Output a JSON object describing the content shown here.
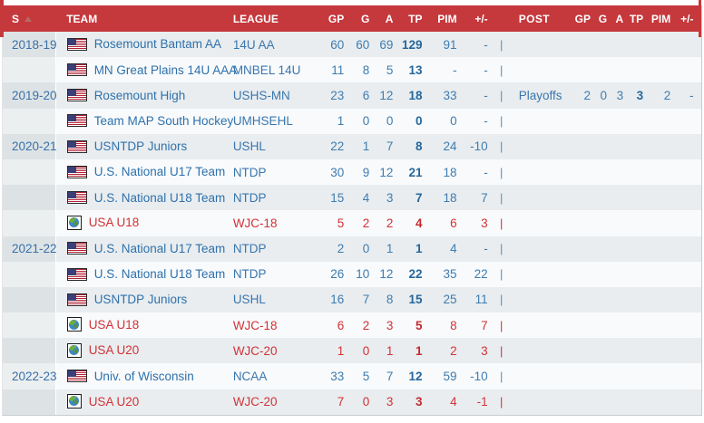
{
  "table": {
    "separator": "|",
    "header": {
      "season": "S",
      "team": "TEAM",
      "league": "LEAGUE",
      "gp": "GP",
      "g": "G",
      "a": "A",
      "tp": "TP",
      "pim": "PIM",
      "plus_minus": "+/-",
      "post": "POST",
      "post_gp": "GP",
      "post_g": "G",
      "post_a": "A",
      "post_tp": "TP",
      "post_pim": "PIM",
      "post_plus_minus": "+/-"
    },
    "rows": [
      {
        "season": "2018-19",
        "team": "Rosemount Bantam AA",
        "league": "14U AA",
        "icon": "us-flag",
        "intl": false,
        "gp": "60",
        "g": "60",
        "a": "69",
        "tp": "129",
        "pim": "91",
        "pm": "-",
        "post": null
      },
      {
        "season": "",
        "team": "MN Great Plains 14U AAA",
        "league": "MNBEL 14U",
        "icon": "us-flag",
        "intl": false,
        "gp": "11",
        "g": "8",
        "a": "5",
        "tp": "13",
        "pim": "-",
        "pm": "-",
        "post": null
      },
      {
        "season": "2019-20",
        "team": "Rosemount High",
        "league": "USHS-MN",
        "icon": "us-flag",
        "intl": false,
        "gp": "23",
        "g": "6",
        "a": "12",
        "tp": "18",
        "pim": "33",
        "pm": "-",
        "post": {
          "label": "Playoffs",
          "gp": "2",
          "g": "0",
          "a": "3",
          "tp": "3",
          "pim": "2",
          "pm": "-"
        }
      },
      {
        "season": "",
        "team": "Team MAP South Hockey",
        "league": "UMHSEHL",
        "icon": "us-flag",
        "intl": false,
        "gp": "1",
        "g": "0",
        "a": "0",
        "tp": "0",
        "pim": "0",
        "pm": "-",
        "post": null
      },
      {
        "season": "2020-21",
        "team": "USNTDP Juniors",
        "league": "USHL",
        "icon": "us-flag",
        "intl": false,
        "gp": "22",
        "g": "1",
        "a": "7",
        "tp": "8",
        "pim": "24",
        "pm": "-10",
        "post": null
      },
      {
        "season": "",
        "team": "U.S. National U17 Team",
        "league": "NTDP",
        "icon": "us-flag",
        "intl": false,
        "gp": "30",
        "g": "9",
        "a": "12",
        "tp": "21",
        "pim": "18",
        "pm": "-",
        "post": null
      },
      {
        "season": "",
        "team": "U.S. National U18 Team",
        "league": "NTDP",
        "icon": "us-flag",
        "intl": false,
        "gp": "15",
        "g": "4",
        "a": "3",
        "tp": "7",
        "pim": "18",
        "pm": "7",
        "post": null
      },
      {
        "season": "",
        "team": "USA U18",
        "league": "WJC-18",
        "icon": "globe",
        "intl": true,
        "gp": "5",
        "g": "2",
        "a": "2",
        "tp": "4",
        "pim": "6",
        "pm": "3",
        "post": null
      },
      {
        "season": "2021-22",
        "team": "U.S. National U17 Team",
        "league": "NTDP",
        "icon": "us-flag",
        "intl": false,
        "gp": "2",
        "g": "0",
        "a": "1",
        "tp": "1",
        "pim": "4",
        "pm": "-",
        "post": null
      },
      {
        "season": "",
        "team": "U.S. National U18 Team",
        "league": "NTDP",
        "icon": "us-flag",
        "intl": false,
        "gp": "26",
        "g": "10",
        "a": "12",
        "tp": "22",
        "pim": "35",
        "pm": "22",
        "post": null
      },
      {
        "season": "",
        "team": "USNTDP Juniors",
        "league": "USHL",
        "icon": "us-flag",
        "intl": false,
        "gp": "16",
        "g": "7",
        "a": "8",
        "tp": "15",
        "pim": "25",
        "pm": "11",
        "post": null
      },
      {
        "season": "",
        "team": "USA U18",
        "league": "WJC-18",
        "icon": "globe",
        "intl": true,
        "gp": "6",
        "g": "2",
        "a": "3",
        "tp": "5",
        "pim": "8",
        "pm": "7",
        "post": null
      },
      {
        "season": "",
        "team": "USA U20",
        "league": "WJC-20",
        "icon": "globe",
        "intl": true,
        "gp": "1",
        "g": "0",
        "a": "1",
        "tp": "1",
        "pim": "2",
        "pm": "3",
        "post": null
      },
      {
        "season": "2022-23",
        "team": "Univ. of Wisconsin",
        "league": "NCAA",
        "icon": "us-flag",
        "intl": false,
        "gp": "33",
        "g": "5",
        "a": "7",
        "tp": "12",
        "pim": "59",
        "pm": "-10",
        "post": null
      },
      {
        "season": "",
        "team": "USA U20",
        "league": "WJC-20",
        "icon": "globe",
        "intl": true,
        "gp": "7",
        "g": "0",
        "a": "3",
        "tp": "3",
        "pim": "4",
        "pm": "-1",
        "post": null
      }
    ]
  },
  "colors": {
    "header_bg": "#c5383c",
    "link_blue": "#2e71ac",
    "stat_blue": "#3e7cb1",
    "total_bold_blue": "#26679c",
    "intl_red": "#d23136",
    "row_stripe": "#e9edef",
    "row_plain": "#f8fafb",
    "season_cell_text": "#3a70a8"
  }
}
